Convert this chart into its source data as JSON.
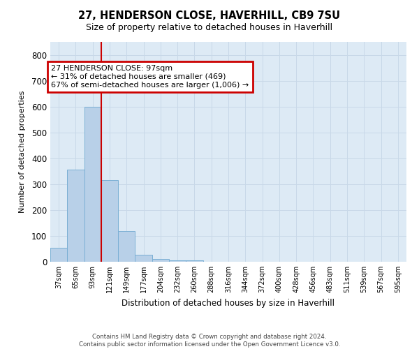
{
  "title": "27, HENDERSON CLOSE, HAVERHILL, CB9 7SU",
  "subtitle": "Size of property relative to detached houses in Haverhill",
  "xlabel": "Distribution of detached houses by size in Haverhill",
  "ylabel": "Number of detached properties",
  "bar_labels": [
    "37sqm",
    "65sqm",
    "93sqm",
    "121sqm",
    "149sqm",
    "177sqm",
    "204sqm",
    "232sqm",
    "260sqm",
    "288sqm",
    "316sqm",
    "344sqm",
    "372sqm",
    "400sqm",
    "428sqm",
    "456sqm",
    "483sqm",
    "511sqm",
    "539sqm",
    "567sqm",
    "595sqm"
  ],
  "bar_values": [
    55,
    355,
    600,
    315,
    120,
    28,
    12,
    5,
    5,
    0,
    0,
    0,
    0,
    0,
    0,
    0,
    0,
    0,
    0,
    0,
    0
  ],
  "bar_color": "#b8d0e8",
  "bar_edge_color": "#7aafd4",
  "ylim": [
    0,
    850
  ],
  "yticks": [
    0,
    100,
    200,
    300,
    400,
    500,
    600,
    700,
    800
  ],
  "property_line_x": 2.5,
  "annotation_title": "27 HENDERSON CLOSE: 97sqm",
  "annotation_line1": "← 31% of detached houses are smaller (469)",
  "annotation_line2": "67% of semi-detached houses are larger (1,006) →",
  "annotation_box_facecolor": "#ffffff",
  "annotation_box_edgecolor": "#cc0000",
  "vline_color": "#cc0000",
  "grid_color": "#c8d8e8",
  "plot_bg_color": "#ddeaf5",
  "fig_bg_color": "#ffffff",
  "footer_line1": "Contains HM Land Registry data © Crown copyright and database right 2024.",
  "footer_line2": "Contains public sector information licensed under the Open Government Licence v3.0."
}
